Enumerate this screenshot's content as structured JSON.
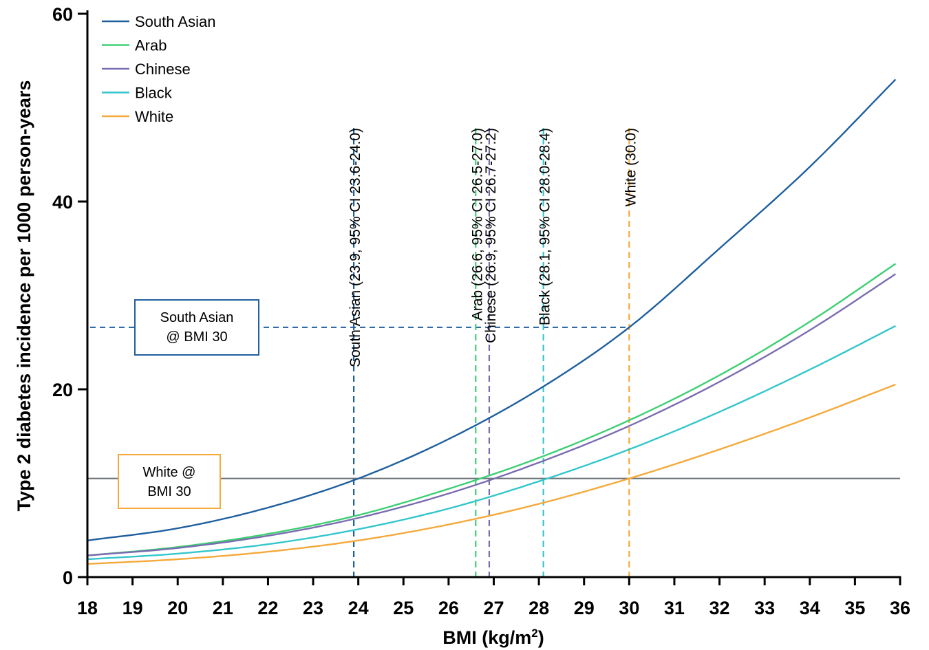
{
  "chart_data": {
    "type": "line",
    "xlabel": "BMI (kg/m",
    "xlabel_sup": "2",
    "xlabel_suffix": ")",
    "ylabel": "Type 2 diabetes incidence per 1000 person-years",
    "xlim": [
      18,
      36
    ],
    "ylim": [
      0,
      60
    ],
    "x_ticks": [
      "18",
      "19",
      "20",
      "21",
      "22",
      "23",
      "24",
      "25",
      "26",
      "27",
      "28",
      "29",
      "30",
      "31",
      "32",
      "33",
      "34",
      "35",
      "36"
    ],
    "y_ticks": [
      "0",
      "20",
      "40",
      "60"
    ],
    "grid": false,
    "legend_position": "top-left",
    "series": [
      {
        "name": "South Asian",
        "color": "#1f5f9e",
        "x": [
          18,
          20,
          22,
          24,
          26,
          28,
          30,
          32,
          34,
          36
        ],
        "values": [
          3.9,
          5.2,
          7.4,
          10.5,
          14.7,
          20.0,
          26.6,
          35.0,
          43.7,
          53.5
        ]
      },
      {
        "name": "Arab",
        "color": "#3dcf73",
        "x": [
          18,
          20,
          22,
          24,
          26,
          28,
          30,
          32,
          34,
          36
        ],
        "values": [
          2.3,
          3.2,
          4.6,
          6.6,
          9.4,
          12.7,
          16.7,
          21.5,
          27.2,
          33.7
        ]
      },
      {
        "name": "Chinese",
        "color": "#7a6cb0",
        "x": [
          18,
          20,
          22,
          24,
          26,
          28,
          30,
          32,
          34,
          36
        ],
        "values": [
          2.3,
          3.1,
          4.4,
          6.3,
          8.9,
          12.2,
          16.1,
          20.8,
          26.3,
          32.6
        ]
      },
      {
        "name": "Black",
        "color": "#33c6cc",
        "x": [
          18,
          20,
          22,
          24,
          26,
          28,
          30,
          32,
          34,
          36
        ],
        "values": [
          1.9,
          2.5,
          3.5,
          5.1,
          7.3,
          10.2,
          13.6,
          17.6,
          22.1,
          27.0
        ]
      },
      {
        "name": "White",
        "color": "#f4a93a",
        "x": [
          18,
          20,
          22,
          24,
          26,
          28,
          30,
          32,
          34,
          36
        ],
        "values": [
          1.4,
          1.9,
          2.7,
          3.9,
          5.6,
          7.8,
          10.5,
          13.6,
          17.0,
          20.7
        ]
      }
    ],
    "cutoffs": [
      {
        "group": "South Asian",
        "bmi": 23.9,
        "label": "South Asian (23.9, 95% CI 23.6-24.0)",
        "color": "#1f5f9e"
      },
      {
        "group": "Arab",
        "bmi": 26.6,
        "label": "Arab (26.6, 95% CI 26.5-27.0)",
        "color": "#3dcf73"
      },
      {
        "group": "Chinese",
        "bmi": 26.9,
        "label": "Chinese (26.9, 95% CI 26.7-27.2)",
        "color": "#7a6cb0"
      },
      {
        "group": "Black",
        "bmi": 28.1,
        "label": "Black (28.1, 95% CI 28.0-28.4)",
        "color": "#33c6cc"
      },
      {
        "group": "White",
        "bmi": 30.0,
        "label": "White (30.0)",
        "color": "#f4a93a"
      }
    ],
    "reference_lines": [
      {
        "name": "south-asian-at-bmi-30",
        "y": 26.6,
        "style": "dashed",
        "color": "#1f5f9e"
      },
      {
        "name": "white-at-bmi-30",
        "y": 10.5,
        "style": "solid",
        "color": "#6a7276"
      }
    ],
    "annotations": [
      {
        "name": "south-asian-box",
        "lines": [
          "South Asian",
          "@ BMI 30"
        ],
        "color": "#1f5f9e"
      },
      {
        "name": "white-box",
        "lines": [
          "White @",
          "BMI 30"
        ],
        "color": "#f4a93a"
      }
    ]
  }
}
